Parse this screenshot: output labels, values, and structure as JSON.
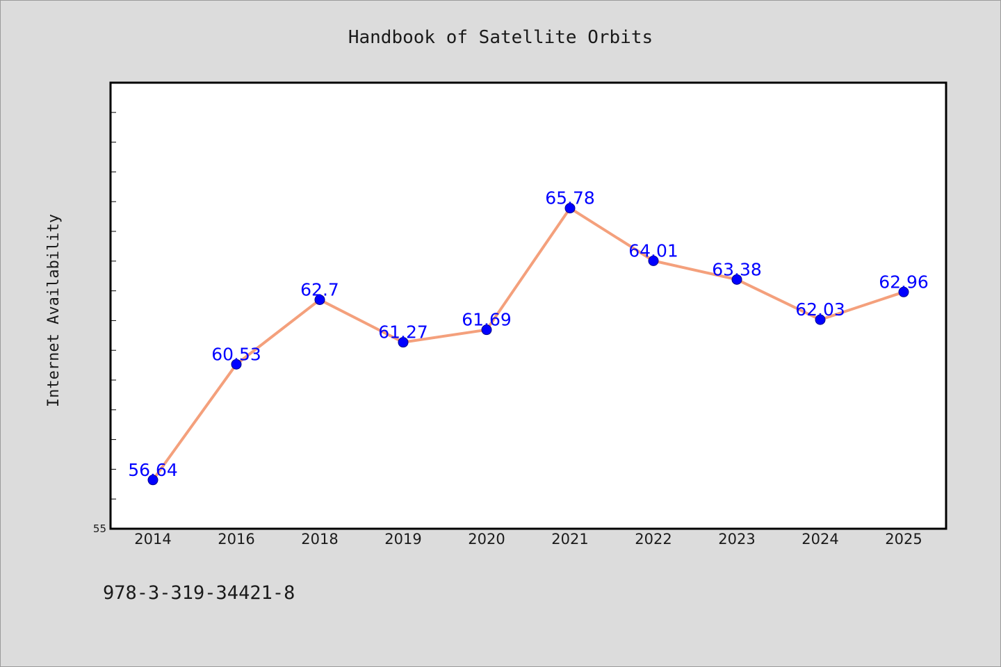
{
  "chart_data": {
    "type": "line",
    "title": "Handbook of Satellite Orbits",
    "xlabel": "",
    "ylabel": "Internet Availability",
    "categories": [
      "2014",
      "2016",
      "2018",
      "2019",
      "2020",
      "2021",
      "2022",
      "2023",
      "2024",
      "2025"
    ],
    "series": [
      {
        "values": [
          56.64,
          60.53,
          62.7,
          61.27,
          61.69,
          65.78,
          64.01,
          63.38,
          62.03,
          62.96
        ],
        "data_labels": [
          "56.64",
          "60.53",
          "62.7",
          "61.27",
          "61.69",
          "65.78",
          "64.01",
          "63.38",
          "62.03",
          "62.96"
        ]
      }
    ],
    "ylim": [
      55,
      70
    ],
    "ytick_labels": [
      "55"
    ],
    "minor_ytick_step": 1,
    "grid": false,
    "legend": "none",
    "colors": {
      "line": "#f4a07c",
      "marker": "#0000ff",
      "marker_edge": "#00008b",
      "data_label": "#0000ff",
      "plot_background": "#ffffff",
      "figure_background": "#dcdcdc"
    }
  },
  "footer": {
    "isbn": "978-3-319-34421-8"
  }
}
